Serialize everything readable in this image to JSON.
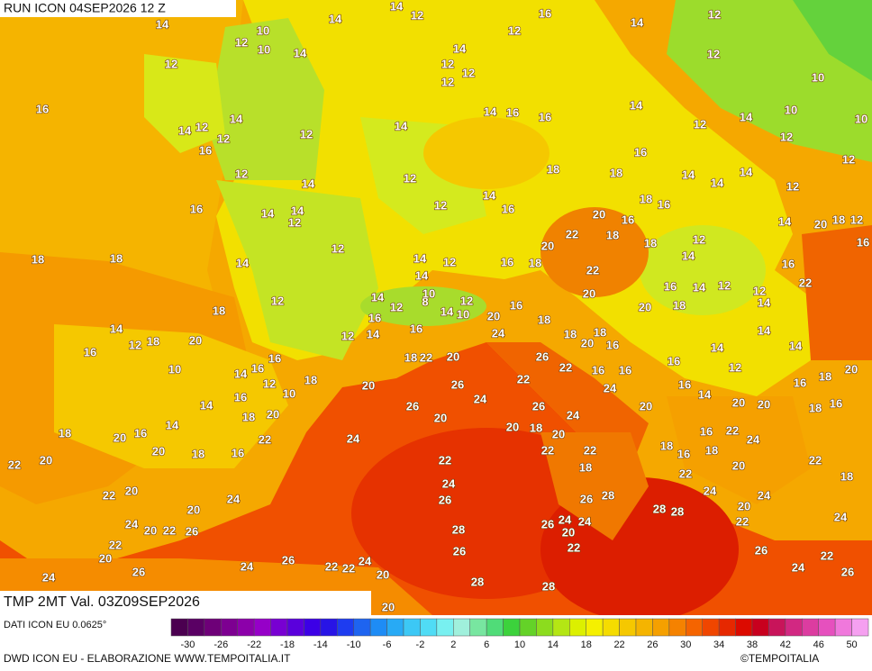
{
  "header": {
    "run": "RUN ICON 04SEP2026 12 Z"
  },
  "map": {
    "labels": [
      14,
      10,
      12,
      14,
      12,
      10,
      14,
      14,
      12,
      12,
      16,
      14,
      12,
      16,
      14,
      12,
      14,
      12,
      12,
      12,
      14,
      12,
      12,
      14,
      16,
      16,
      14,
      12,
      10,
      10,
      10,
      12,
      14,
      12,
      12,
      16,
      18,
      18,
      14,
      14,
      14,
      12,
      16,
      12,
      14,
      14,
      12,
      12,
      14,
      16,
      16,
      14,
      12,
      14,
      12,
      18,
      18,
      14,
      12,
      18,
      14,
      12,
      14,
      16,
      18,
      20,
      22,
      20,
      18,
      16,
      18,
      16,
      18,
      12,
      14,
      22,
      20,
      20,
      18,
      16,
      14,
      12,
      12,
      14,
      14,
      20,
      18,
      12,
      16,
      16,
      22,
      14,
      12,
      8,
      14,
      10,
      10,
      12,
      16,
      14,
      12,
      16,
      20,
      16,
      18,
      24,
      14,
      16,
      12,
      18,
      20,
      16,
      16,
      14,
      12,
      10,
      18,
      10,
      18,
      22,
      20,
      26,
      18,
      18,
      20,
      16,
      22,
      16,
      16,
      24,
      22,
      26,
      24,
      20,
      26,
      26,
      24,
      20,
      16,
      16,
      14,
      14,
      12,
      14,
      14,
      18,
      20,
      16,
      18,
      16,
      20,
      20,
      14,
      16,
      18,
      20,
      14,
      18,
      20,
      16,
      20,
      18,
      16,
      22,
      24,
      20,
      20,
      18,
      20,
      22,
      22,
      18,
      22,
      18,
      16,
      22,
      24,
      16,
      18,
      20,
      22,
      18,
      22,
      20,
      22,
      20,
      20,
      24,
      24,
      20,
      22,
      26,
      22,
      20,
      26,
      24,
      26,
      26,
      28,
      28,
      28,
      22,
      24,
      24,
      20,
      22,
      24,
      26,
      24,
      24,
      20,
      22,
      28,
      26,
      28,
      28,
      26,
      22,
      24,
      26,
      24,
      26,
      22,
      22,
      24,
      20,
      24,
      20
    ]
  },
  "footer": {
    "field": "TMP 2MT Val. 03Z09SEP2026",
    "source": "DATI ICON EU 0.0625°",
    "credit": "DWD ICON EU - ELABORAZIONE WWW.TEMPOITALIA.IT",
    "copyright": "©TEMPOITALIA"
  },
  "legend": {
    "colors": [
      "#4b0050",
      "#5a0064",
      "#6e0078",
      "#7d0091",
      "#8c00aa",
      "#9600c8",
      "#7800d2",
      "#5a00dc",
      "#3c00e6",
      "#2814e6",
      "#1e3cf0",
      "#1e64f0",
      "#1e8cf5",
      "#28aaf5",
      "#3cc8f5",
      "#50dcf5",
      "#78f0f0",
      "#a0f0dc",
      "#78e6a0",
      "#50dc78",
      "#3cd23c",
      "#64d228",
      "#8cdc1e",
      "#b4e614",
      "#dcf000",
      "#f5f000",
      "#f5dc00",
      "#f5c800",
      "#f5b400",
      "#f5a000",
      "#f58200",
      "#f56400",
      "#f04600",
      "#e62800",
      "#dc0a00",
      "#c8001e",
      "#c8145a",
      "#d22882",
      "#dc3ca0",
      "#e650be",
      "#f078dc",
      "#f5a0f0"
    ],
    "ticks": [
      -30,
      -26,
      -22,
      -18,
      -14,
      -10,
      -6,
      -2,
      2,
      6,
      10,
      14,
      18,
      22,
      26,
      30,
      34,
      38,
      42,
      46,
      50
    ]
  }
}
